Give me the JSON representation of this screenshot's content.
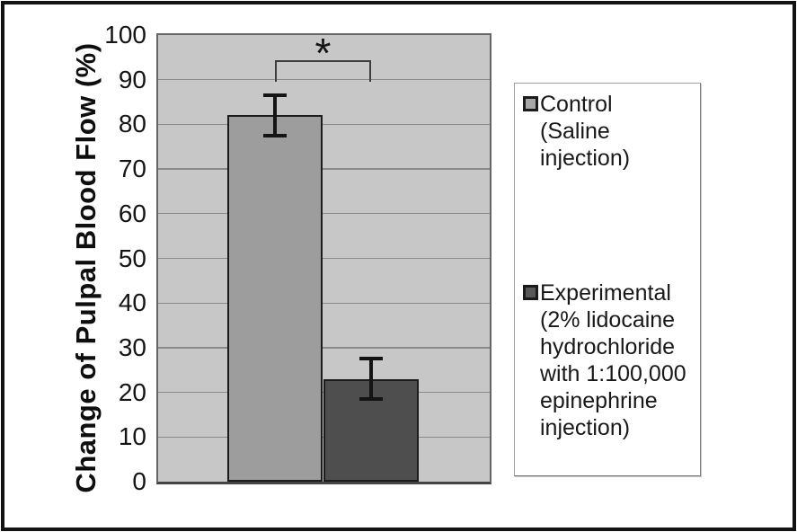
{
  "chart_data": {
    "type": "bar",
    "title": "",
    "xlabel": "",
    "ylabel": "Change of Pulpal Blood Flow (%)",
    "ylim": [
      0,
      100
    ],
    "ytick_step": 10,
    "yticks": [
      0,
      10,
      20,
      30,
      40,
      50,
      60,
      70,
      80,
      90,
      100
    ],
    "grid": true,
    "plot_bg_color": "#c7c7c7",
    "gridline_color": "#8a8a8a",
    "categories": [
      "Control",
      "Experimental"
    ],
    "values": [
      82,
      23
    ],
    "error_bars": [
      4.5,
      4.5
    ],
    "bar_colors": [
      "#9d9d9d",
      "#4e4e4e"
    ],
    "bar_border_color": "#1c1c1c",
    "significance": {
      "label": "*",
      "pair": [
        0,
        1
      ]
    },
    "legend_position": "right",
    "legend": [
      {
        "label": "Control\n(Saline injection)",
        "swatch_color": "#a7a7a7"
      },
      {
        "label": "Experimental\n(2% lidocaine\nhydrochloride\nwith 1:100,000\nepinephrine\ninjection)",
        "swatch_color": "#585858"
      }
    ]
  }
}
